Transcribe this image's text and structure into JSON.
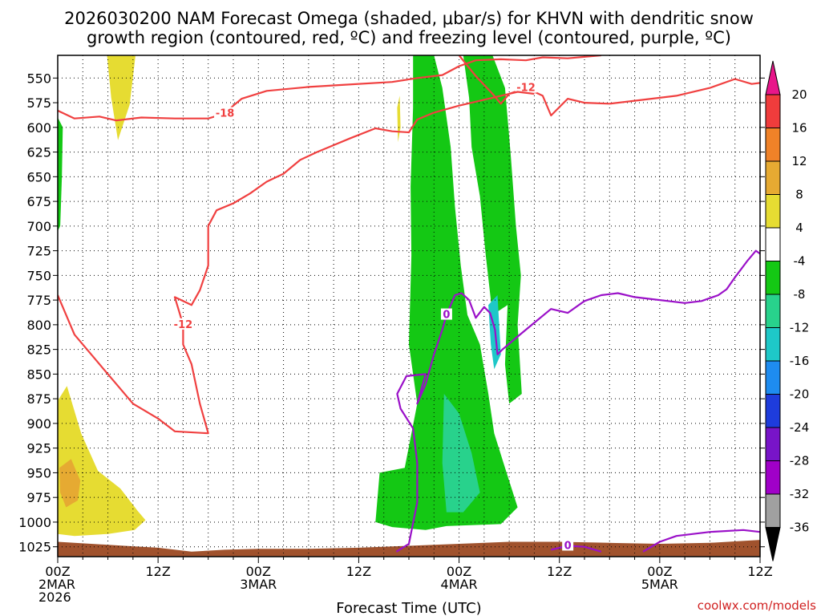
{
  "chart_data": {
    "type": "heatmap",
    "title_lines": [
      "2026030200 NAM Forecast Omega (shaded, μbar/s) for KHVN with dendritic snow",
      "growth region (contoured, red, ºC) and freezing level (contoured, purple, ºC)"
    ],
    "xlabel": "Forecast Time (UTC)",
    "credit": "coolwx.com/models",
    "x_range_hours": [
      0,
      84
    ],
    "x_ticks": [
      {
        "hour": 0,
        "lines": [
          "00Z",
          "2MAR",
          "2026"
        ]
      },
      {
        "hour": 12,
        "lines": [
          "12Z"
        ]
      },
      {
        "hour": 24,
        "lines": [
          "00Z",
          "3MAR"
        ]
      },
      {
        "hour": 36,
        "lines": [
          "12Z"
        ]
      },
      {
        "hour": 48,
        "lines": [
          "00Z",
          "4MAR"
        ]
      },
      {
        "hour": 60,
        "lines": [
          "12Z"
        ]
      },
      {
        "hour": 72,
        "lines": [
          "00Z",
          "5MAR"
        ]
      },
      {
        "hour": 84,
        "lines": [
          "12Z"
        ]
      }
    ],
    "y_axis": {
      "unit": "mb",
      "range": [
        527,
        1035
      ],
      "reversed": true,
      "ticks": [
        550,
        575,
        600,
        625,
        650,
        675,
        700,
        725,
        750,
        775,
        800,
        825,
        850,
        875,
        900,
        925,
        950,
        975,
        1000,
        1025
      ]
    },
    "grid": true,
    "colorbar": {
      "labels": [
        "20",
        "16",
        "12",
        "8",
        "4",
        "-4",
        "-8",
        "-12",
        "-16",
        "-20",
        "-24",
        "-28",
        "-32",
        "-36"
      ],
      "colors": [
        "#e8168a",
        "#f03c3c",
        "#f08228",
        "#e6aa32",
        "#e6dc32",
        "#ffffff",
        "#14c814",
        "#28d28c",
        "#1ec8c8",
        "#1e8cf0",
        "#1e3cdc",
        "#7814c8",
        "#a000c8",
        "#a0a0a0",
        "#000000"
      ]
    },
    "omega_regions": [
      {
        "name": "yellow-upper-left",
        "color": "#e6dc32",
        "points": [
          [
            5.9,
            527
          ],
          [
            9.3,
            527
          ],
          [
            8.6,
            577
          ],
          [
            7.2,
            613
          ],
          [
            6.4,
            570
          ]
        ]
      },
      {
        "name": "yellow-lower-left",
        "color": "#e6dc32",
        "points": [
          [
            0,
            877
          ],
          [
            1.1,
            862
          ],
          [
            2.8,
            910
          ],
          [
            4.8,
            948
          ],
          [
            7.5,
            966
          ],
          [
            9.5,
            988
          ],
          [
            10.5,
            998
          ],
          [
            9.2,
            1008
          ],
          [
            6.0,
            1012
          ],
          [
            2.0,
            1014
          ],
          [
            0,
            1012
          ]
        ]
      },
      {
        "name": "orange-lower-left",
        "color": "#e6aa32",
        "points": [
          [
            0.2,
            945
          ],
          [
            1.6,
            936
          ],
          [
            2.7,
            958
          ],
          [
            2.4,
            978
          ],
          [
            1.0,
            985
          ],
          [
            0.3,
            970
          ]
        ]
      },
      {
        "name": "yellow-thin-streak",
        "color": "#e6dc32",
        "points": [
          [
            40.6,
            580
          ],
          [
            40.9,
            568
          ],
          [
            41.0,
            600
          ],
          [
            40.7,
            615
          ]
        ]
      },
      {
        "name": "green-left-edge",
        "color": "#14c814",
        "points": [
          [
            0,
            590
          ],
          [
            0.6,
            600
          ],
          [
            0.5,
            650
          ],
          [
            0.3,
            700
          ],
          [
            0,
            705
          ]
        ]
      },
      {
        "name": "green-main",
        "color": "#14c814",
        "points": [
          [
            42.5,
            527
          ],
          [
            45.0,
            527
          ],
          [
            46.0,
            560
          ],
          [
            47.0,
            620
          ],
          [
            47.5,
            680
          ],
          [
            48.2,
            740
          ],
          [
            49.0,
            790
          ],
          [
            50.5,
            820
          ],
          [
            51.5,
            870
          ],
          [
            52.2,
            910
          ],
          [
            53.5,
            945
          ],
          [
            55.0,
            985
          ],
          [
            53.0,
            1002
          ],
          [
            46.5,
            1004
          ],
          [
            44.0,
            1008
          ],
          [
            40.0,
            1005
          ],
          [
            38.0,
            1000
          ],
          [
            38.5,
            950
          ],
          [
            41.5,
            945
          ],
          [
            43.0,
            880
          ],
          [
            42.0,
            820
          ],
          [
            42.3,
            730
          ],
          [
            42.2,
            660
          ],
          [
            42.5,
            580
          ]
        ]
      },
      {
        "name": "green-right-column",
        "color": "#14c814",
        "points": [
          [
            48.5,
            527
          ],
          [
            52.0,
            527
          ],
          [
            53.5,
            560
          ],
          [
            54.2,
            630
          ],
          [
            54.8,
            700
          ],
          [
            55.4,
            750
          ],
          [
            55.0,
            800
          ],
          [
            55.5,
            870
          ],
          [
            54.0,
            880
          ],
          [
            53.5,
            840
          ],
          [
            53.8,
            780
          ],
          [
            52.0,
            790
          ],
          [
            51.2,
            730
          ],
          [
            50.5,
            670
          ],
          [
            49.5,
            620
          ],
          [
            49.2,
            570
          ]
        ]
      },
      {
        "name": "teal-lower",
        "color": "#28d28c",
        "points": [
          [
            46.2,
            870
          ],
          [
            48.0,
            890
          ],
          [
            49.5,
            930
          ],
          [
            50.5,
            970
          ],
          [
            48.5,
            990
          ],
          [
            46.5,
            990
          ],
          [
            46.0,
            940
          ]
        ]
      },
      {
        "name": "teal-small",
        "color": "#1ec8c8",
        "points": [
          [
            51.5,
            780
          ],
          [
            52.6,
            770
          ],
          [
            53.0,
            830
          ],
          [
            52.2,
            845
          ],
          [
            51.8,
            820
          ]
        ]
      }
    ],
    "dgz_contours": [
      {
        "label": "-18",
        "points": [
          [
            0,
            583
          ],
          [
            2,
            591
          ],
          [
            5,
            589
          ],
          [
            7,
            593
          ],
          [
            10,
            590
          ],
          [
            14,
            591
          ],
          [
            18,
            591
          ],
          [
            20,
            586
          ],
          [
            21,
            578
          ],
          [
            22,
            571
          ],
          [
            25,
            563
          ],
          [
            30,
            559
          ],
          [
            34,
            557
          ],
          [
            40,
            554
          ],
          [
            43,
            550
          ],
          [
            46,
            547
          ],
          [
            48,
            538
          ],
          [
            50,
            532
          ],
          [
            53,
            531
          ],
          [
            56,
            532
          ],
          [
            58,
            529
          ],
          [
            61,
            530
          ],
          [
            65,
            527
          ]
        ]
      },
      {
        "label": "-12",
        "points": [
          [
            48,
            527
          ],
          [
            50,
            548
          ],
          [
            52,
            566
          ],
          [
            53,
            576
          ],
          [
            54,
            566
          ],
          [
            56,
            560
          ],
          [
            58,
            568
          ],
          [
            59,
            588
          ],
          [
            61,
            571
          ],
          [
            63,
            575
          ],
          [
            66,
            576
          ],
          [
            70,
            572
          ],
          [
            74,
            568
          ],
          [
            78,
            560
          ],
          [
            81,
            551
          ],
          [
            83,
            556
          ],
          [
            84,
            555
          ]
        ]
      },
      {
        "label": "-12",
        "points": [
          [
            0,
            770
          ],
          [
            2,
            810
          ],
          [
            5,
            840
          ],
          [
            7,
            860
          ],
          [
            9,
            880
          ],
          [
            12,
            895
          ],
          [
            14,
            908
          ],
          [
            18,
            910
          ],
          [
            17,
            880
          ],
          [
            16,
            840
          ],
          [
            15,
            820
          ],
          [
            15,
            800
          ],
          [
            14,
            772
          ],
          [
            16,
            780
          ],
          [
            17,
            765
          ],
          [
            18,
            740
          ],
          [
            18,
            700
          ],
          [
            19,
            684
          ],
          [
            21,
            677
          ],
          [
            23,
            667
          ],
          [
            25,
            655
          ],
          [
            27,
            647
          ],
          [
            29,
            633
          ],
          [
            31,
            625
          ],
          [
            33,
            618
          ],
          [
            35,
            611
          ],
          [
            38,
            601
          ],
          [
            40,
            604
          ],
          [
            42,
            605
          ],
          [
            43,
            592
          ],
          [
            45,
            585
          ],
          [
            48,
            578
          ],
          [
            52,
            570
          ],
          [
            55,
            564
          ],
          [
            57,
            566
          ]
        ]
      }
    ],
    "freezing_contours": [
      {
        "label": "0",
        "points": [
          [
            40.5,
            1030
          ],
          [
            42,
            1022
          ],
          [
            43,
            980
          ],
          [
            43,
            940
          ],
          [
            42.5,
            905
          ],
          [
            41,
            885
          ],
          [
            40.6,
            870
          ],
          [
            41.7,
            852
          ],
          [
            44,
            850
          ],
          [
            43,
            880
          ],
          [
            44,
            860
          ],
          [
            45,
            830
          ],
          [
            46,
            805
          ],
          [
            46.5,
            790
          ],
          [
            47.5,
            770
          ],
          [
            48.3,
            768
          ],
          [
            49.2,
            775
          ],
          [
            50,
            793
          ],
          [
            51,
            782
          ],
          [
            51.7,
            788
          ],
          [
            52.3,
            805
          ],
          [
            52.6,
            830
          ],
          [
            53.2,
            825
          ],
          [
            55,
            812
          ],
          [
            57,
            798
          ],
          [
            59,
            784
          ],
          [
            61,
            788
          ],
          [
            63,
            776
          ],
          [
            65,
            770
          ],
          [
            67,
            768
          ],
          [
            69,
            772
          ],
          [
            71,
            774
          ],
          [
            73,
            776
          ],
          [
            75,
            778
          ],
          [
            77,
            776
          ],
          [
            79,
            770
          ],
          [
            80,
            764
          ],
          [
            81,
            752
          ],
          [
            82.5,
            735
          ],
          [
            83.5,
            725
          ],
          [
            84,
            728
          ]
        ]
      },
      {
        "label": "0",
        "points": [
          [
            59,
            1028
          ],
          [
            61,
            1024
          ],
          [
            63,
            1025
          ],
          [
            65,
            1030
          ]
        ]
      },
      {
        "label": "",
        "points": [
          [
            70,
            1030
          ],
          [
            72,
            1020
          ],
          [
            74,
            1014
          ],
          [
            78,
            1010
          ],
          [
            82,
            1008
          ],
          [
            84,
            1010
          ]
        ]
      }
    ],
    "ground_profile": [
      [
        0,
        1020
      ],
      [
        4,
        1022
      ],
      [
        8,
        1024
      ],
      [
        12,
        1026
      ],
      [
        16,
        1030
      ],
      [
        20,
        1028
      ],
      [
        24,
        1027
      ],
      [
        30,
        1027
      ],
      [
        36,
        1026
      ],
      [
        42,
        1024
      ],
      [
        48,
        1022
      ],
      [
        54,
        1020
      ],
      [
        60,
        1020
      ],
      [
        66,
        1021
      ],
      [
        72,
        1022
      ],
      [
        78,
        1021
      ],
      [
        84,
        1018
      ]
    ]
  }
}
